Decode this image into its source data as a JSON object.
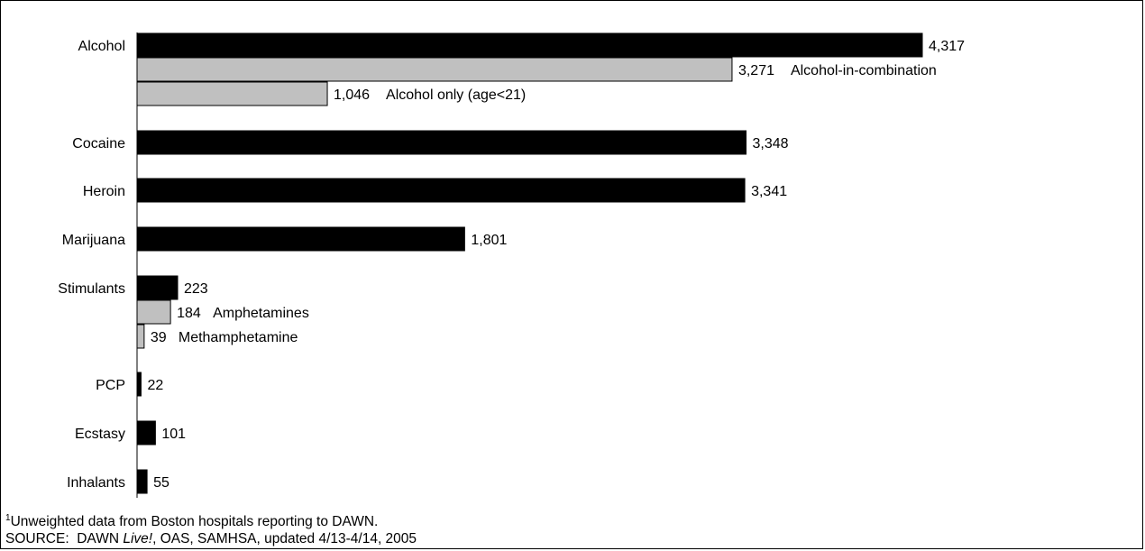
{
  "chart_data": {
    "type": "bar",
    "orientation": "horizontal",
    "groups": [
      {
        "category": "Alcohol",
        "value": 4317,
        "value_label": "4,317",
        "sub": [
          {
            "name": "Alcohol-in-combination",
            "value": 3271,
            "value_label": "3,271"
          },
          {
            "name": "Alcohol only (age<21)",
            "value": 1046,
            "value_label": "1,046"
          }
        ]
      },
      {
        "category": "Cocaine",
        "value": 3348,
        "value_label": "3,348",
        "sub": []
      },
      {
        "category": "Heroin",
        "value": 3341,
        "value_label": "3,341",
        "sub": []
      },
      {
        "category": "Marijuana",
        "value": 1801,
        "value_label": "1,801",
        "sub": []
      },
      {
        "category": "Stimulants",
        "value": 223,
        "value_label": "223",
        "sub": [
          {
            "name": "Amphetamines",
            "value": 184,
            "value_label": "184"
          },
          {
            "name": "Methamphetamine",
            "value": 39,
            "value_label": "39"
          }
        ]
      },
      {
        "category": "PCP",
        "value": 22,
        "value_label": "22",
        "sub": []
      },
      {
        "category": "Ecstasy",
        "value": 101,
        "value_label": "101",
        "sub": []
      },
      {
        "category": "Inhalants",
        "value": 55,
        "value_label": "55",
        "sub": []
      }
    ],
    "colors": {
      "main": "#000000",
      "sub": "#c0c0c0"
    },
    "grid": false,
    "legend": "none"
  },
  "footnote": {
    "sup": "1",
    "line1": "Unweighted data from Boston hospitals reporting to DAWN.",
    "line2_prefix": "SOURCE:  DAWN ",
    "line2_italic": "Live!",
    "line2_suffix": ", OAS, SAMHSA, updated 4/13-4/14, 2005"
  }
}
